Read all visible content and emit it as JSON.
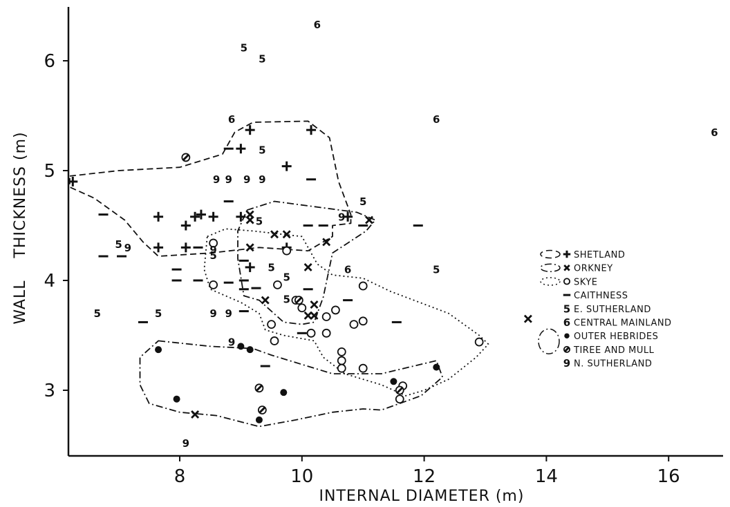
{
  "chart_data": {
    "type": "scatter",
    "xlabel": "INTERNAL  DIAMETER (m)",
    "ylabel": "WALL    THICKNESS (m)",
    "xlim": [
      6.2,
      17.2
    ],
    "ylim": [
      2.45,
      6.5
    ],
    "xticks": [
      8,
      10,
      12,
      14,
      16
    ],
    "yticks": [
      3,
      4,
      5,
      6
    ],
    "grid": false,
    "legend_position": "right",
    "series": [
      {
        "name": "SHETLAND",
        "marker": "plus",
        "points": [
          [
            6.25,
            4.9
          ],
          [
            7.65,
            4.58
          ],
          [
            8.1,
            4.5
          ],
          [
            8.25,
            4.58
          ],
          [
            8.35,
            4.6
          ],
          [
            8.55,
            4.58
          ],
          [
            9.0,
            4.58
          ],
          [
            9.0,
            5.2
          ],
          [
            9.15,
            5.37
          ],
          [
            9.75,
            5.04
          ],
          [
            10.15,
            5.37
          ],
          [
            10.75,
            4.58
          ],
          [
            7.65,
            4.3
          ],
          [
            8.1,
            4.3
          ],
          [
            9.15,
            4.12
          ],
          [
            9.75,
            4.3
          ]
        ]
      },
      {
        "name": "ORKNEY",
        "marker": "x",
        "points": [
          [
            9.15,
            4.6
          ],
          [
            9.15,
            4.55
          ],
          [
            9.55,
            4.42
          ],
          [
            9.75,
            4.42
          ],
          [
            9.15,
            4.3
          ],
          [
            9.4,
            3.82
          ],
          [
            10.1,
            4.12
          ],
          [
            10.4,
            4.35
          ],
          [
            10.1,
            3.68
          ],
          [
            10.2,
            3.78
          ],
          [
            10.2,
            3.68
          ],
          [
            11.1,
            4.55
          ],
          [
            8.25,
            2.78
          ],
          [
            13.7,
            3.65
          ]
        ]
      },
      {
        "name": "SKYE",
        "marker": "circle",
        "points": [
          [
            8.55,
            4.34
          ],
          [
            9.75,
            4.27
          ],
          [
            8.55,
            3.96
          ],
          [
            9.6,
            3.96
          ],
          [
            9.9,
            3.82
          ],
          [
            10.0,
            3.75
          ],
          [
            9.5,
            3.6
          ],
          [
            10.4,
            3.67
          ],
          [
            10.55,
            3.73
          ],
          [
            10.85,
            3.6
          ],
          [
            11.0,
            3.63
          ],
          [
            11.0,
            3.95
          ],
          [
            9.55,
            3.45
          ],
          [
            10.15,
            3.52
          ],
          [
            10.4,
            3.52
          ],
          [
            10.65,
            3.35
          ],
          [
            10.65,
            3.27
          ],
          [
            10.65,
            3.2
          ],
          [
            11.0,
            3.2
          ],
          [
            11.65,
            3.04
          ],
          [
            11.6,
            2.92
          ],
          [
            12.9,
            3.44
          ]
        ]
      },
      {
        "name": "CAITHNESS",
        "marker": "dash",
        "points": [
          [
            6.75,
            4.6
          ],
          [
            6.75,
            4.22
          ],
          [
            7.05,
            4.22
          ],
          [
            7.4,
            3.62
          ],
          [
            7.95,
            4.1
          ],
          [
            7.95,
            4.0
          ],
          [
            8.3,
            4.0
          ],
          [
            8.3,
            4.3
          ],
          [
            8.8,
            4.72
          ],
          [
            8.8,
            5.2
          ],
          [
            8.8,
            3.98
          ],
          [
            9.05,
            4.0
          ],
          [
            9.05,
            3.92
          ],
          [
            9.05,
            4.18
          ],
          [
            9.05,
            3.72
          ],
          [
            9.25,
            3.93
          ],
          [
            10.1,
            4.5
          ],
          [
            10.35,
            4.5
          ],
          [
            10.1,
            3.92
          ],
          [
            10.15,
            4.92
          ],
          [
            10.75,
            3.82
          ],
          [
            11.0,
            4.5
          ],
          [
            11.55,
            3.62
          ],
          [
            11.9,
            4.5
          ],
          [
            10.0,
            3.52
          ],
          [
            9.4,
            3.22
          ]
        ]
      },
      {
        "name": "E. SUTHERLAND",
        "marker": "5",
        "points": [
          [
            9.05,
            6.12
          ],
          [
            9.35,
            6.02
          ],
          [
            9.35,
            5.19
          ],
          [
            9.3,
            4.54
          ],
          [
            7.0,
            4.33
          ],
          [
            8.55,
            4.23
          ],
          [
            9.5,
            4.12
          ],
          [
            9.75,
            4.03
          ],
          [
            6.65,
            3.7
          ],
          [
            7.65,
            3.7
          ],
          [
            9.75,
            3.83
          ],
          [
            11.0,
            4.72
          ],
          [
            12.2,
            4.1
          ]
        ]
      },
      {
        "name": "CENTRAL MAINLAND",
        "marker": "6",
        "points": [
          [
            10.25,
            6.33
          ],
          [
            8.85,
            5.47
          ],
          [
            12.2,
            5.47
          ],
          [
            16.75,
            5.35
          ],
          [
            10.75,
            4.1
          ]
        ]
      },
      {
        "name": "OUTER HEBRIDES",
        "marker": "dot",
        "points": [
          [
            7.65,
            3.37
          ],
          [
            7.95,
            2.92
          ],
          [
            9.0,
            3.4
          ],
          [
            9.15,
            3.37
          ],
          [
            9.3,
            2.73
          ],
          [
            9.7,
            2.98
          ],
          [
            11.5,
            3.08
          ],
          [
            12.2,
            3.21
          ]
        ]
      },
      {
        "name": "TIREE AND MULL",
        "marker": "hatched",
        "points": [
          [
            8.1,
            5.12
          ],
          [
            9.3,
            3.02
          ],
          [
            9.35,
            2.82
          ],
          [
            9.95,
            3.82
          ],
          [
            11.6,
            3.0
          ]
        ]
      },
      {
        "name": "N. SUTHERLAND",
        "marker": "9",
        "points": [
          [
            8.6,
            4.92
          ],
          [
            8.8,
            4.92
          ],
          [
            9.1,
            4.92
          ],
          [
            9.35,
            4.92
          ],
          [
            7.15,
            4.3
          ],
          [
            8.55,
            4.28
          ],
          [
            10.65,
            4.58
          ],
          [
            8.55,
            3.7
          ],
          [
            8.8,
            3.7
          ],
          [
            8.85,
            3.44
          ],
          [
            8.1,
            2.52
          ]
        ]
      }
    ],
    "legend": [
      {
        "label": "SHETLAND",
        "marker": "plus",
        "outline": "dashed"
      },
      {
        "label": "ORKNEY",
        "marker": "x",
        "outline": "dashdot"
      },
      {
        "label": "SKYE",
        "marker": "circle",
        "outline": "dotted"
      },
      {
        "label": "CAITHNESS",
        "marker": "dash",
        "outline": "none"
      },
      {
        "label": "E. SUTHERLAND",
        "marker": "5",
        "outline": "none"
      },
      {
        "label": "CENTRAL MAINLAND",
        "marker": "6",
        "outline": "none"
      },
      {
        "label": "OUTER HEBRIDES",
        "marker": "dot",
        "outline": "dashdot"
      },
      {
        "label": "TIREE AND MULL",
        "marker": "hatched",
        "outline": "dashdot"
      },
      {
        "label": "N. SUTHERLAND",
        "marker": "9",
        "outline": "none"
      }
    ],
    "regions": [
      {
        "name": "SHETLAND",
        "style": "dashed",
        "points": [
          [
            6.2,
            4.95
          ],
          [
            7.0,
            5.0
          ],
          [
            8.0,
            5.03
          ],
          [
            8.7,
            5.15
          ],
          [
            8.9,
            5.35
          ],
          [
            9.2,
            5.44
          ],
          [
            10.1,
            5.45
          ],
          [
            10.45,
            5.3
          ],
          [
            10.6,
            4.9
          ],
          [
            10.8,
            4.6
          ],
          [
            10.8,
            4.52
          ],
          [
            10.5,
            4.5
          ],
          [
            10.5,
            4.4
          ],
          [
            10.1,
            4.27
          ],
          [
            9.3,
            4.3
          ],
          [
            8.5,
            4.25
          ],
          [
            7.65,
            4.22
          ],
          [
            7.4,
            4.35
          ],
          [
            7.1,
            4.55
          ],
          [
            6.6,
            4.75
          ],
          [
            6.2,
            4.85
          ]
        ]
      },
      {
        "name": "ORKNEY",
        "style": "dashdot",
        "points": [
          [
            9.1,
            4.64
          ],
          [
            9.55,
            4.72
          ],
          [
            10.9,
            4.62
          ],
          [
            11.2,
            4.55
          ],
          [
            11.05,
            4.45
          ],
          [
            10.5,
            4.25
          ],
          [
            10.35,
            3.85
          ],
          [
            10.2,
            3.62
          ],
          [
            10.0,
            3.6
          ],
          [
            9.7,
            3.62
          ],
          [
            9.3,
            3.82
          ],
          [
            9.05,
            3.86
          ],
          [
            8.95,
            4.2
          ],
          [
            8.95,
            4.45
          ]
        ]
      },
      {
        "name": "SKYE",
        "style": "dotted",
        "points": [
          [
            8.45,
            4.4
          ],
          [
            8.75,
            4.47
          ],
          [
            9.2,
            4.45
          ],
          [
            10.0,
            4.4
          ],
          [
            10.25,
            4.15
          ],
          [
            10.5,
            4.05
          ],
          [
            11.0,
            4.02
          ],
          [
            11.45,
            3.9
          ],
          [
            12.4,
            3.7
          ],
          [
            12.9,
            3.5
          ],
          [
            13.05,
            3.42
          ],
          [
            12.85,
            3.3
          ],
          [
            12.4,
            3.1
          ],
          [
            12.0,
            3.0
          ],
          [
            11.7,
            2.95
          ],
          [
            11.3,
            3.05
          ],
          [
            10.7,
            3.15
          ],
          [
            10.35,
            3.3
          ],
          [
            10.2,
            3.45
          ],
          [
            9.7,
            3.5
          ],
          [
            9.4,
            3.55
          ],
          [
            9.3,
            3.7
          ],
          [
            9.0,
            3.8
          ],
          [
            8.5,
            3.92
          ],
          [
            8.4,
            4.1
          ]
        ]
      },
      {
        "name": "OUTER HEBRIDES",
        "style": "dashdot",
        "points": [
          [
            7.65,
            3.45
          ],
          [
            8.5,
            3.4
          ],
          [
            9.2,
            3.38
          ],
          [
            9.5,
            3.32
          ],
          [
            10.5,
            3.15
          ],
          [
            11.3,
            3.15
          ],
          [
            12.2,
            3.27
          ],
          [
            12.3,
            3.12
          ],
          [
            11.95,
            2.95
          ],
          [
            11.6,
            2.88
          ],
          [
            11.3,
            2.82
          ],
          [
            11.0,
            2.83
          ],
          [
            10.5,
            2.8
          ],
          [
            9.9,
            2.73
          ],
          [
            9.3,
            2.67
          ],
          [
            8.6,
            2.77
          ],
          [
            8.0,
            2.8
          ],
          [
            7.5,
            2.88
          ],
          [
            7.35,
            3.05
          ],
          [
            7.35,
            3.3
          ]
        ]
      }
    ]
  }
}
